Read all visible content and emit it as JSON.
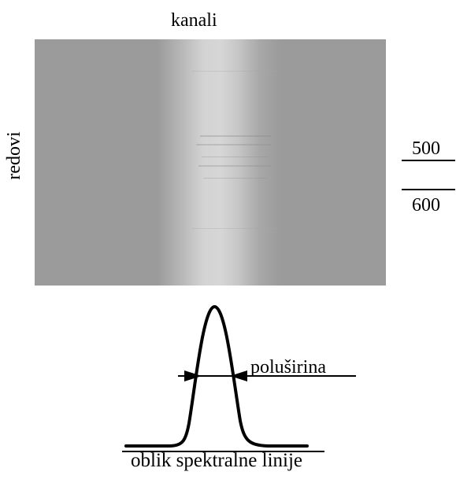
{
  "labels": {
    "title": "kanali",
    "rows_axis": "redovi",
    "scale_top": "500",
    "scale_bottom": "600",
    "half_width": "poluširina",
    "caption": "oblik spektralne linije"
  },
  "colors": {
    "background_gray": "#9b9b9b",
    "band_bright": "#d6d6d6",
    "line": "#000000"
  },
  "icons": {
    "arrow_left": "arrow-right-pointing-icon",
    "arrow_right": "arrow-left-pointing-icon"
  }
}
